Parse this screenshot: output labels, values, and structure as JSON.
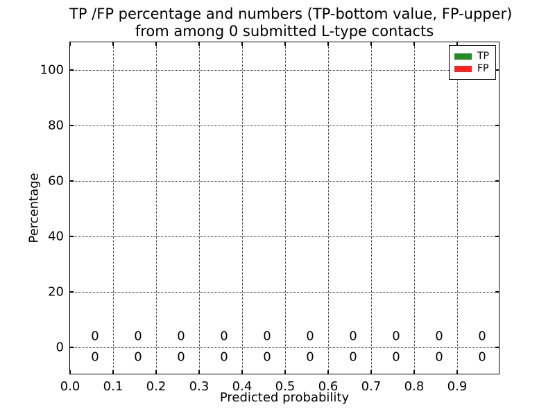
{
  "title": {
    "line1": "TP /FP percentage and numbers (TP-bottom value, FP-upper)",
    "line2": "from among 0 submitted L-type contacts"
  },
  "chart_data": {
    "type": "bar",
    "title": "TP /FP percentage and numbers (TP-bottom value, FP-upper) from among 0 submitted L-type contacts",
    "xlabel": "Predicted probability",
    "ylabel": "Percentage",
    "xlim": [
      0.0,
      1.0
    ],
    "ylim": [
      -10,
      110
    ],
    "x_ticks": [
      0.0,
      0.1,
      0.2,
      0.3,
      0.4,
      0.5,
      0.6,
      0.7,
      0.8,
      0.9
    ],
    "x_tick_labels": [
      "0.0",
      "0.1",
      "0.2",
      "0.3",
      "0.4",
      "0.5",
      "0.6",
      "0.7",
      "0.8",
      "0.9"
    ],
    "y_ticks": [
      0,
      20,
      40,
      60,
      80,
      100
    ],
    "y_tick_labels": [
      "0",
      "20",
      "40",
      "60",
      "80",
      "100"
    ],
    "grid": true,
    "grid_style": "dotted",
    "bin_centers": [
      0.058,
      0.158,
      0.258,
      0.358,
      0.458,
      0.558,
      0.658,
      0.758,
      0.858,
      0.958
    ],
    "series": [
      {
        "name": "TP",
        "color": "#228b22",
        "values": [
          0,
          0,
          0,
          0,
          0,
          0,
          0,
          0,
          0,
          0
        ]
      },
      {
        "name": "FP",
        "color": "#fb2222",
        "values": [
          0,
          0,
          0,
          0,
          0,
          0,
          0,
          0,
          0,
          0
        ]
      }
    ],
    "annotations": {
      "fp_row": {
        "y": 4,
        "values": [
          "0",
          "0",
          "0",
          "0",
          "0",
          "0",
          "0",
          "0",
          "0",
          "0"
        ]
      },
      "tp_row": {
        "y": -3.5,
        "values": [
          "0",
          "0",
          "0",
          "0",
          "0",
          "0",
          "0",
          "0",
          "0",
          "0"
        ]
      }
    },
    "legend": {
      "position": "upper right",
      "items": [
        {
          "label": "TP",
          "color": "#228b22"
        },
        {
          "label": "FP",
          "color": "#fb2222"
        }
      ]
    }
  }
}
